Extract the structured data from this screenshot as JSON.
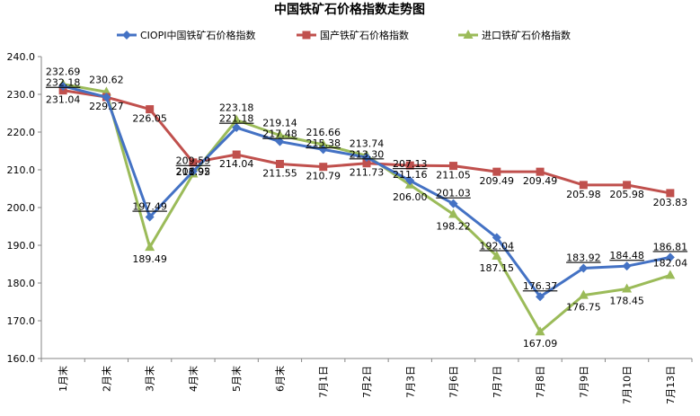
{
  "chart_data": {
    "type": "line",
    "title": "中国铁矿石价格指数走势图",
    "xlabel": "",
    "ylabel": "",
    "ylim": [
      160,
      240
    ],
    "ytick_step": 10,
    "grid": false,
    "legend_position": "top",
    "categories": [
      "1月末",
      "2月末",
      "3月末",
      "4月末",
      "5月末",
      "6月末",
      "7月1日",
      "7月2日",
      "7月3日",
      "7月6日",
      "7月7日",
      "7月8日",
      "7月9日",
      "7月10日",
      "7月13日"
    ],
    "series": [
      {
        "name": "CIOPI中国铁矿石价格指数",
        "color": "#4472C4",
        "marker": "diamond",
        "values": [
          232.18,
          229.27,
          197.49,
          209.59,
          221.18,
          217.48,
          215.38,
          213.3,
          207.13,
          201.03,
          192.04,
          176.37,
          183.92,
          184.48,
          186.81
        ]
      },
      {
        "name": "国产铁矿石价格指数",
        "color": "#C0504D",
        "marker": "square",
        "values": [
          231.04,
          229.27,
          226.05,
          211.95,
          214.04,
          211.55,
          210.79,
          211.73,
          211.16,
          211.05,
          209.49,
          209.49,
          205.98,
          205.98,
          203.83
        ]
      },
      {
        "name": "进口铁矿石价格指数",
        "color": "#9BBB59",
        "marker": "triangle",
        "values": [
          232.69,
          230.62,
          189.49,
          208.92,
          223.18,
          219.14,
          216.66,
          213.74,
          206.0,
          198.22,
          187.15,
          167.09,
          176.75,
          178.45,
          182.04
        ]
      }
    ],
    "data_labels": [
      {
        "text": "232.69",
        "series": 2,
        "index": 0
      },
      {
        "text": "232.18",
        "series": 0,
        "index": 0,
        "underline": true
      },
      {
        "text": "231.04",
        "series": 1,
        "index": 0
      },
      {
        "text": "230.62",
        "series": 2,
        "index": 1
      },
      {
        "text": "229.27",
        "series": 1,
        "index": 1
      },
      {
        "text": "226.05",
        "series": 1,
        "index": 2
      },
      {
        "text": "197.49",
        "series": 0,
        "index": 2,
        "underline": true
      },
      {
        "text": "189.49",
        "series": 2,
        "index": 2
      },
      {
        "text": "211.95",
        "series": 1,
        "index": 3
      },
      {
        "text": "209.59",
        "series": 0,
        "index": 3,
        "underline": true
      },
      {
        "text": "208.92",
        "series": 2,
        "index": 3
      },
      {
        "text": "223.18",
        "series": 2,
        "index": 4
      },
      {
        "text": "221.18",
        "series": 0,
        "index": 4,
        "underline": true
      },
      {
        "text": "214.04",
        "series": 1,
        "index": 4
      },
      {
        "text": "219.14",
        "series": 2,
        "index": 5
      },
      {
        "text": "217.48",
        "series": 0,
        "index": 5,
        "underline": true
      },
      {
        "text": "211.55",
        "series": 1,
        "index": 5
      },
      {
        "text": "216.66",
        "series": 2,
        "index": 6
      },
      {
        "text": "215.38",
        "series": 0,
        "index": 6,
        "underline": true
      },
      {
        "text": "210.79",
        "series": 1,
        "index": 6
      },
      {
        "text": "213.74",
        "series": 2,
        "index": 7
      },
      {
        "text": "213.30",
        "series": 0,
        "index": 7,
        "underline": true
      },
      {
        "text": "211.73",
        "series": 1,
        "index": 7
      },
      {
        "text": "211.16",
        "series": 1,
        "index": 8
      },
      {
        "text": "207.13",
        "series": 0,
        "index": 8,
        "underline": true
      },
      {
        "text": "206.00",
        "series": 2,
        "index": 8
      },
      {
        "text": "211.05",
        "series": 1,
        "index": 9
      },
      {
        "text": "201.03",
        "series": 0,
        "index": 9,
        "underline": true
      },
      {
        "text": "198.22",
        "series": 2,
        "index": 9
      },
      {
        "text": "209.49",
        "series": 1,
        "index": 10
      },
      {
        "text": "187.15",
        "series": 2,
        "index": 10
      },
      {
        "text": "192.04",
        "series": 0,
        "index": 10,
        "underline": true
      },
      {
        "text": "209.49",
        "series": 1,
        "index": 11
      },
      {
        "text": "176.37",
        "series": 0,
        "index": 11,
        "underline": true
      },
      {
        "text": "167.09",
        "series": 2,
        "index": 11
      },
      {
        "text": "205.98",
        "series": 1,
        "index": 12
      },
      {
        "text": "183.92",
        "series": 0,
        "index": 12,
        "underline": true
      },
      {
        "text": "176.75",
        "series": 2,
        "index": 12
      },
      {
        "text": "205.98",
        "series": 1,
        "index": 13
      },
      {
        "text": "184.48",
        "series": 0,
        "index": 13,
        "underline": true
      },
      {
        "text": "178.45",
        "series": 2,
        "index": 13
      },
      {
        "text": "203.83",
        "series": 1,
        "index": 14
      },
      {
        "text": "182.04",
        "series": 2,
        "index": 14
      },
      {
        "text": "186.81",
        "series": 0,
        "index": 14,
        "underline": true
      }
    ]
  }
}
